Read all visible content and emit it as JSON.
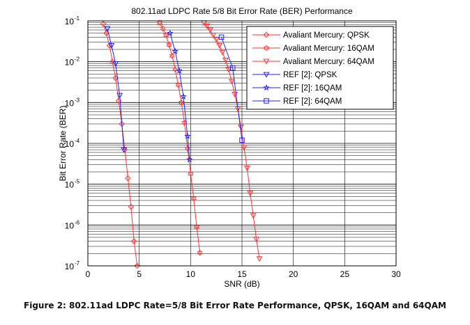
{
  "caption": "Figure 2: 802.11ad LDPC Rate=5/8 Bit Error Rate Performance, QPSK, 16QAM and 64QAM",
  "chart_data": {
    "type": "line",
    "title": "802.11ad LDPC Rate 5/8 Bit Error Rate (BER) Performance",
    "xlabel": "SNR (dB)",
    "ylabel": "Bit Error Rate (BER)",
    "xlim": [
      0,
      30
    ],
    "ylim": [
      1e-07,
      0.1
    ],
    "yscale": "log",
    "grid": true,
    "legend_position": "top-right",
    "x_ticks": [
      0,
      5,
      10,
      15,
      20,
      25,
      30
    ],
    "y_ticks": [
      {
        "value": 1e-07,
        "base": "10",
        "exp": "-7"
      },
      {
        "value": 1e-06,
        "base": "10",
        "exp": "-6"
      },
      {
        "value": 1e-05,
        "base": "10",
        "exp": "-5"
      },
      {
        "value": 0.0001,
        "base": "10",
        "exp": "-4"
      },
      {
        "value": 0.001,
        "base": "10",
        "exp": "-3"
      },
      {
        "value": 0.01,
        "base": "10",
        "exp": "-2"
      },
      {
        "value": 0.1,
        "base": "10",
        "exp": "-1"
      }
    ],
    "series": [
      {
        "name": "Avaliant Mercury: QPSK",
        "color": "#ff3333",
        "marker": "diamond",
        "x": [
          1.5,
          1.8,
          2.1,
          2.4,
          2.7,
          3.0,
          3.3,
          3.6,
          3.9,
          4.2,
          4.5,
          4.8
        ],
        "y": [
          0.085,
          0.05,
          0.025,
          0.01,
          0.004,
          0.0011,
          0.0003,
          7e-05,
          1.4e-05,
          2.8e-06,
          4e-07,
          1e-07
        ]
      },
      {
        "name": "Avaliant Mercury: 16QAM",
        "color": "#ff3333",
        "marker": "hexagram",
        "x": [
          7.0,
          7.3,
          7.6,
          7.9,
          8.2,
          8.5,
          8.8,
          9.1,
          9.4,
          9.7,
          10.0,
          10.3,
          10.6,
          10.9
        ],
        "y": [
          0.09,
          0.065,
          0.045,
          0.026,
          0.014,
          0.0065,
          0.0027,
          0.001,
          0.00032,
          7.5e-05,
          1.8e-05,
          4.5e-06,
          9e-07,
          2.1e-07
        ]
      },
      {
        "name": "Avaliant Mercury: 64QAM",
        "color": "#ff3333",
        "marker": "triangle-down",
        "x": [
          11.3,
          11.6,
          11.9,
          12.2,
          12.5,
          12.8,
          13.1,
          13.4,
          13.7,
          14.0,
          14.3,
          14.6,
          14.9,
          15.2,
          15.5,
          15.8,
          16.1,
          16.4,
          16.7
        ],
        "y": [
          0.09,
          0.075,
          0.06,
          0.045,
          0.035,
          0.025,
          0.017,
          0.011,
          0.0065,
          0.0033,
          0.0016,
          0.0007,
          0.00025,
          8e-05,
          2.5e-05,
          6e-06,
          1.7e-06,
          4.5e-07,
          1.5e-07
        ]
      },
      {
        "name": "REF [2]: QPSK",
        "color": "#2222ee",
        "marker": "triangle-down",
        "x": [
          1.9,
          2.3,
          2.7,
          3.1,
          3.5
        ],
        "y": [
          0.065,
          0.025,
          0.009,
          0.0015,
          7e-05
        ]
      },
      {
        "name": "REF [2]: 16QAM",
        "color": "#2222ee",
        "marker": "star",
        "x": [
          8.0,
          8.5,
          8.9,
          9.3,
          9.7,
          9.9
        ],
        "y": [
          0.05,
          0.018,
          0.006,
          0.0014,
          0.00015,
          4e-05
        ]
      },
      {
        "name": "REF [2]: 64QAM",
        "color": "#2222ee",
        "marker": "square",
        "x": [
          13.0,
          14.1,
          15.0
        ],
        "y": [
          0.04,
          0.007,
          0.00012
        ]
      }
    ]
  }
}
